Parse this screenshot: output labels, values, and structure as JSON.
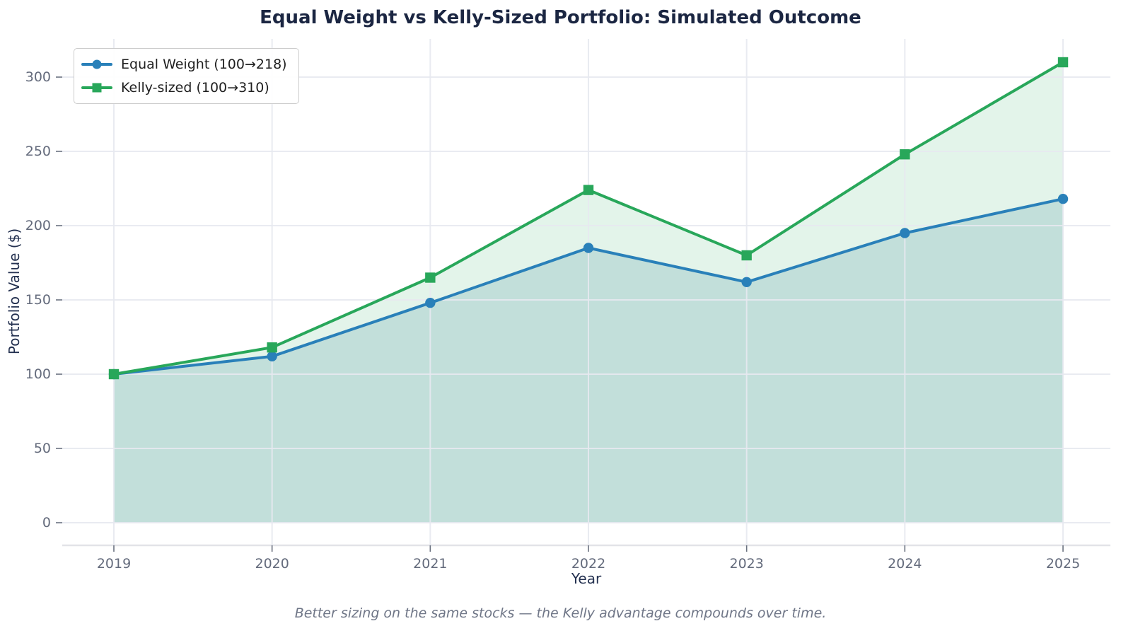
{
  "title": "Equal Weight vs Kelly-Sized Portfolio: Simulated Outcome",
  "caption": "Better sizing on the same stocks — the Kelly advantage compounds over time.",
  "chart_data": {
    "type": "line",
    "title": "Equal Weight vs Kelly-Sized Portfolio: Simulated Outcome",
    "xlabel": "Year",
    "ylabel": "Portfolio Value ($)",
    "x": [
      2019,
      2020,
      2021,
      2022,
      2023,
      2024,
      2025
    ],
    "series": [
      {
        "name": "Equal Weight (100→218)",
        "values": [
          100,
          112,
          148,
          185,
          162,
          195,
          218
        ],
        "color": "#2980b9",
        "marker": "circle",
        "fill": "rgba(35,115,150,0.17)"
      },
      {
        "name": "Kelly-sized (100→310)",
        "values": [
          100,
          118,
          165,
          224,
          180,
          248,
          310
        ],
        "color": "#28a75a",
        "marker": "square",
        "fill": "rgba(40,167,90,0.13)"
      }
    ],
    "yticks": [
      0,
      50,
      100,
      150,
      200,
      250,
      300
    ],
    "ylim": [
      -15.5,
      325.5
    ],
    "grid": true,
    "legend_position": "upper left",
    "area_fill_to_zero": true,
    "annotation": "Better sizing on the same stocks — the Kelly advantage compounds over time."
  },
  "colors": {
    "grid": "rgba(231,233,240,0.9)",
    "spine": "#e2e3e8",
    "tick_mark": "#6b7280",
    "title_text": "#1b2642",
    "axis_label_text": "#243150",
    "tick_text": "#646b7c",
    "caption_text": "#6f7687"
  }
}
